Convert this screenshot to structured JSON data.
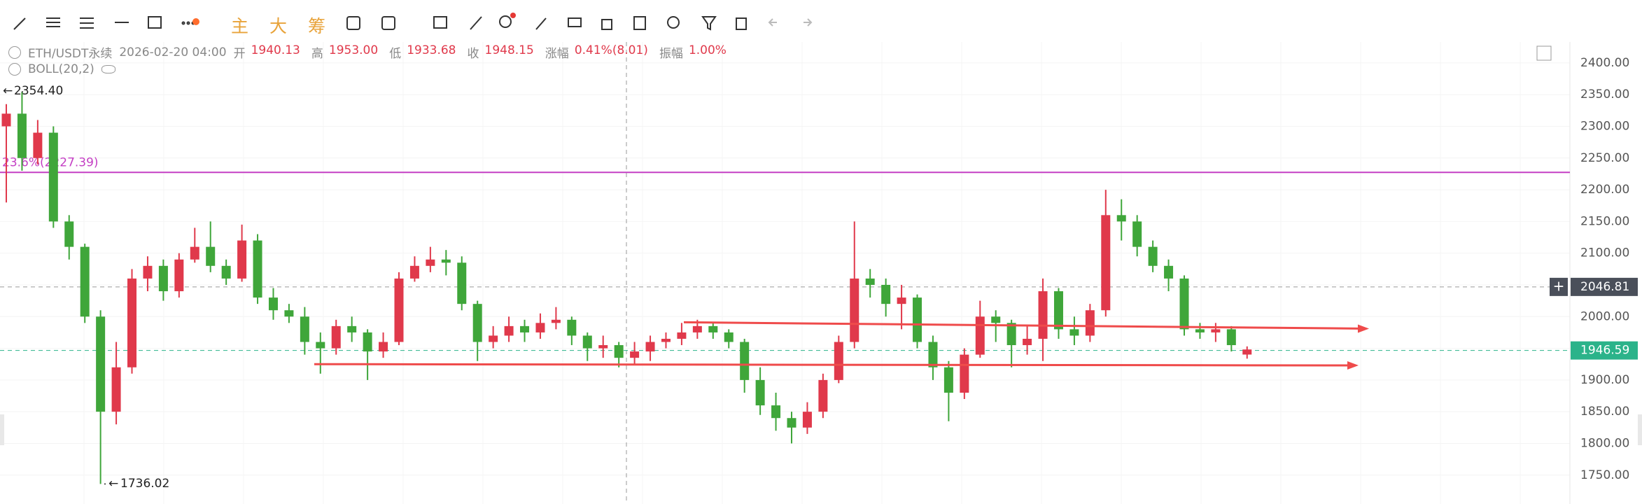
{
  "toolbar": {
    "buttons": [
      "主",
      "大",
      "筹"
    ]
  },
  "header": {
    "symbol": "ETH/USDT永续",
    "time": "2026-02-20 04:00",
    "items": [
      {
        "label": "开",
        "value": "1940.13"
      },
      {
        "label": "高",
        "value": "1953.00"
      },
      {
        "label": "低",
        "value": "1933.68"
      },
      {
        "label": "收",
        "value": "1948.15"
      },
      {
        "label": "涨幅",
        "value": "0.41%(8.01)"
      },
      {
        "label": "振幅",
        "value": "1.00%"
      }
    ],
    "indicator": "BOLL(20,2)"
  },
  "chart_data": {
    "type": "candlestick",
    "up_color": "#e0394b",
    "down_color": "#3fa63a",
    "grid": true,
    "ylim": [
      1710,
      2433
    ],
    "yticks": [
      {
        "value": 1750,
        "label": "1750.00"
      },
      {
        "value": 1800,
        "label": "1800.00"
      },
      {
        "value": 1850,
        "label": "1850.00"
      },
      {
        "value": 1900,
        "label": "1900.00"
      },
      {
        "value": 1950,
        "label": "1950.00"
      },
      {
        "value": 2000,
        "label": "2000.00"
      },
      {
        "value": 2050,
        "label": "2050.00"
      },
      {
        "value": 2100,
        "label": "2100.00"
      },
      {
        "value": 2150,
        "label": "2150.00"
      },
      {
        "value": 2200,
        "label": "2200.00"
      },
      {
        "value": 2250,
        "label": "2250.00"
      },
      {
        "value": 2300,
        "label": "2300.00"
      },
      {
        "value": 2350,
        "label": "2350.00"
      },
      {
        "value": 2400,
        "label": "2400.00"
      }
    ],
    "open": [
      2300,
      2320,
      2250,
      2290,
      2150,
      2110,
      2000,
      1850,
      1920,
      2060,
      2080,
      2040,
      2090,
      2110,
      2080,
      2060,
      2120,
      2030,
      2010,
      2000,
      1960,
      1950,
      1985,
      1975,
      1945,
      1960,
      2060,
      2080,
      2090,
      2085,
      2020,
      1960,
      1970,
      1985,
      1975,
      1990,
      1995,
      1970,
      1950,
      1955,
      1935,
      1945,
      1960,
      1965,
      1975,
      1985,
      1975,
      1960,
      1900,
      1860,
      1840,
      1825,
      1850,
      1900,
      1960,
      2060,
      2050,
      2020,
      2030,
      1960,
      1920,
      1880,
      1940,
      2000,
      1990,
      1955,
      1965,
      2040,
      1980,
      1970,
      2010,
      2160,
      2150,
      2110,
      2080,
      2060,
      1980,
      1975,
      1980,
      1940.13
    ],
    "high": [
      2335,
      2354.4,
      2310,
      2300,
      2160,
      2115,
      2010,
      1960,
      2075,
      2095,
      2090,
      2100,
      2140,
      2150,
      2090,
      2145,
      2130,
      2045,
      2020,
      2015,
      1975,
      1995,
      2000,
      1980,
      1975,
      2070,
      2095,
      2110,
      2105,
      2095,
      2025,
      1985,
      2000,
      1995,
      2005,
      2015,
      2000,
      1975,
      1970,
      1960,
      1960,
      1970,
      1975,
      1990,
      1995,
      1990,
      1980,
      1965,
      1920,
      1880,
      1850,
      1865,
      1910,
      1970,
      2150,
      2075,
      2060,
      2050,
      2035,
      1970,
      1930,
      1950,
      2025,
      2010,
      1995,
      1985,
      2060,
      2045,
      2000,
      2020,
      2200,
      2185,
      2160,
      2120,
      2090,
      2065,
      1990,
      1990,
      1985,
      1953
    ],
    "low": [
      2180,
      2230,
      2240,
      2140,
      2090,
      1990,
      1736.02,
      1830,
      1910,
      2040,
      2025,
      2030,
      2085,
      2070,
      2050,
      2055,
      2020,
      1995,
      1990,
      1940,
      1910,
      1940,
      1960,
      1900,
      1935,
      1955,
      2055,
      2070,
      2065,
      2010,
      1930,
      1950,
      1960,
      1960,
      1965,
      1980,
      1955,
      1930,
      1935,
      1920,
      1925,
      1930,
      1950,
      1955,
      1965,
      1965,
      1950,
      1880,
      1845,
      1820,
      1800,
      1815,
      1840,
      1895,
      1950,
      2030,
      2000,
      1980,
      1950,
      1900,
      1835,
      1870,
      1935,
      1960,
      1920,
      1940,
      1930,
      1965,
      1955,
      1960,
      2000,
      2120,
      2095,
      2070,
      2040,
      1970,
      1965,
      1960,
      1945,
      1933.68
    ],
    "close": [
      2320,
      2250,
      2290,
      2150,
      2110,
      2000,
      1850,
      1920,
      2060,
      2080,
      2040,
      2090,
      2110,
      2080,
      2060,
      2120,
      2030,
      2010,
      2000,
      1960,
      1950,
      1985,
      1975,
      1945,
      1960,
      2060,
      2080,
      2090,
      2085,
      2020,
      1960,
      1970,
      1985,
      1975,
      1990,
      1995,
      1970,
      1950,
      1955,
      1935,
      1945,
      1960,
      1965,
      1975,
      1985,
      1975,
      1960,
      1900,
      1860,
      1840,
      1825,
      1850,
      1900,
      1960,
      2060,
      2050,
      2020,
      2030,
      1960,
      1920,
      1880,
      1940,
      2000,
      1990,
      1955,
      1965,
      2040,
      1980,
      1970,
      2010,
      2160,
      2150,
      2110,
      2080,
      2060,
      1980,
      1975,
      1980,
      1955,
      1948.15
    ],
    "annotations": {
      "max": {
        "value": 2354.4,
        "label": "2354.40"
      },
      "min": {
        "value": 1736.02,
        "label": "1736.02"
      },
      "fib": {
        "value": 2227.39,
        "label": "23.6%(2227.39)",
        "color": "#c43fc4"
      },
      "crosshair": {
        "value": 2046.81,
        "label": "2046.81"
      },
      "last_price": {
        "value": 1946.59,
        "label": "1946.59",
        "color": "#2bb38a"
      }
    },
    "trend_lines": [
      {
        "color": "#ef4b4b",
        "values": [
          1991,
          1981
        ]
      },
      {
        "color": "#ef4b4b",
        "values": [
          1925,
          1923
        ]
      }
    ]
  }
}
